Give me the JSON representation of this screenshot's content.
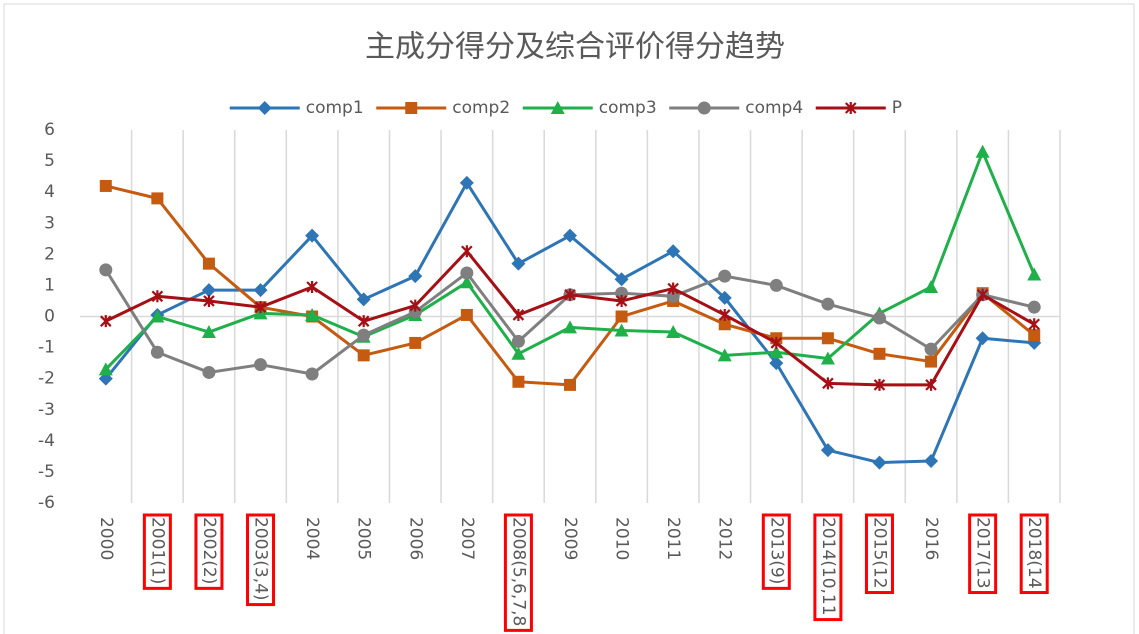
{
  "chart_data": {
    "type": "line",
    "title": "主成分得分及综合评价得分趋势",
    "categories": [
      "2000",
      "2001(1)",
      "2002(2)",
      "2003(3,4)",
      "2004",
      "2005",
      "2006",
      "2007",
      "2008(5,6,7,8",
      "2009",
      "2010",
      "2011",
      "2012",
      "2013(9)",
      "2014(10,11",
      "2015(12",
      "2016",
      "2017(13",
      "2018(14"
    ],
    "series": [
      {
        "name": "comp1",
        "color": "#2e75b6",
        "marker": "diamond",
        "values": [
          -2.0,
          0.05,
          0.85,
          0.85,
          2.6,
          0.55,
          1.3,
          4.3,
          1.7,
          2.6,
          1.2,
          2.1,
          0.6,
          -1.5,
          -4.3,
          -4.7,
          -4.65,
          -0.7,
          -0.85
        ]
      },
      {
        "name": "comp2",
        "color": "#c55a11",
        "marker": "square",
        "values": [
          4.2,
          3.8,
          1.7,
          0.3,
          0.0,
          -1.25,
          -0.85,
          0.05,
          -2.1,
          -2.2,
          0.0,
          0.5,
          -0.25,
          -0.7,
          -0.7,
          -1.2,
          -1.45,
          0.75,
          -0.6
        ]
      },
      {
        "name": "comp3",
        "color": "#1fb04a",
        "marker": "triangle",
        "values": [
          -1.7,
          0.0,
          -0.5,
          0.1,
          0.05,
          -0.65,
          0.05,
          1.1,
          -1.2,
          -0.35,
          -0.45,
          -0.5,
          -1.25,
          -1.15,
          -1.35,
          0.1,
          0.95,
          5.3,
          1.35
        ]
      },
      {
        "name": "comp4",
        "color": "#7f7f7f",
        "marker": "circle",
        "values": [
          1.5,
          -1.15,
          -1.8,
          -1.55,
          -1.85,
          -0.6,
          0.15,
          1.4,
          -0.8,
          0.7,
          0.75,
          0.65,
          1.3,
          1.0,
          0.4,
          -0.05,
          -1.05,
          0.7,
          0.3
        ]
      },
      {
        "name": "P",
        "color": "#a50f15",
        "marker": "star",
        "values": [
          -0.15,
          0.65,
          0.5,
          0.3,
          0.95,
          -0.15,
          0.35,
          2.1,
          0.05,
          0.7,
          0.5,
          0.9,
          0.05,
          -0.85,
          -2.15,
          -2.2,
          -2.2,
          0.7,
          -0.25
        ]
      }
    ],
    "ylim": [
      -6,
      6
    ],
    "yticks": [
      -6,
      -5,
      -4,
      -3,
      -2,
      -1,
      0,
      1,
      2,
      3,
      4,
      5,
      6
    ],
    "grid": "vertical",
    "legend": "top"
  }
}
